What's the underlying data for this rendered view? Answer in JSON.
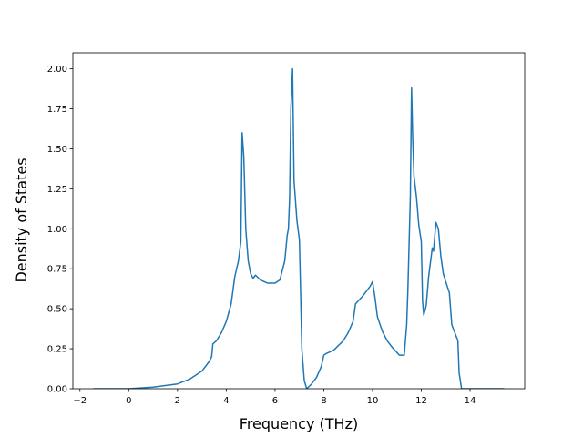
{
  "chart_data": {
    "type": "line",
    "x_label": "Frequency (THz)",
    "y_label": "Density of States",
    "series": [
      {
        "name": null,
        "color": "#1f77b4",
        "x": [
          -1.45,
          0,
          1,
          2,
          2.5,
          3,
          3.3,
          3.4,
          3.45,
          3.6,
          3.8,
          4.0,
          4.2,
          4.35,
          4.5,
          4.6,
          4.65,
          4.72,
          4.8,
          4.9,
          5.0,
          5.1,
          5.2,
          5.4,
          5.7,
          6.0,
          6.2,
          6.4,
          6.5,
          6.55,
          6.6,
          6.65,
          6.72,
          6.78,
          6.9,
          7.0,
          7.05,
          7.1,
          7.2,
          7.3,
          7.5,
          7.7,
          7.9,
          8.0,
          8.1,
          8.4,
          8.8,
          9.0,
          9.2,
          9.3,
          9.6,
          9.9,
          10.0,
          10.1,
          10.2,
          10.4,
          10.6,
          10.8,
          11.1,
          11.3,
          11.4,
          11.45,
          11.55,
          11.6,
          11.65,
          11.7,
          11.8,
          11.9,
          12.0,
          12.05,
          12.1,
          12.2,
          12.3,
          12.45,
          12.5,
          12.6,
          12.7,
          12.8,
          12.9,
          13.0,
          13.15,
          13.25,
          13.5,
          13.55,
          13.65,
          15.4
        ],
        "values": [
          0,
          0,
          0.01,
          0.03,
          0.06,
          0.11,
          0.17,
          0.2,
          0.28,
          0.3,
          0.35,
          0.42,
          0.53,
          0.7,
          0.8,
          0.92,
          1.6,
          1.45,
          1.0,
          0.8,
          0.72,
          0.69,
          0.71,
          0.68,
          0.66,
          0.66,
          0.68,
          0.8,
          0.96,
          1.0,
          1.2,
          1.75,
          2.0,
          1.3,
          1.05,
          0.93,
          0.6,
          0.25,
          0.05,
          0.0,
          0.03,
          0.07,
          0.14,
          0.21,
          0.22,
          0.24,
          0.3,
          0.35,
          0.42,
          0.53,
          0.58,
          0.64,
          0.67,
          0.57,
          0.45,
          0.36,
          0.3,
          0.26,
          0.21,
          0.21,
          0.4,
          0.62,
          1.2,
          1.88,
          1.55,
          1.33,
          1.2,
          1.02,
          0.92,
          0.55,
          0.46,
          0.52,
          0.7,
          0.88,
          0.86,
          1.04,
          1.0,
          0.83,
          0.72,
          0.67,
          0.6,
          0.4,
          0.3,
          0.1,
          0,
          0
        ]
      }
    ],
    "xlim": [
      -2.29,
      16.24
    ],
    "xticks": [
      {
        "value": -2,
        "label": "−2"
      },
      0,
      2,
      4,
      6,
      8,
      10,
      12,
      14
    ],
    "ylim": [
      0,
      2.1
    ],
    "yticks": [
      {
        "value": 0,
        "label": "0.00"
      },
      {
        "value": 0.25,
        "label": "0.25"
      },
      {
        "value": 0.5,
        "label": "0.50"
      },
      {
        "value": 0.75,
        "label": "0.75"
      },
      {
        "value": 1.0,
        "label": "1.00"
      },
      {
        "value": 1.25,
        "label": "1.25"
      },
      {
        "value": 1.5,
        "label": "1.50"
      },
      {
        "value": 1.75,
        "label": "1.75"
      },
      {
        "value": 2.0,
        "label": "2.00"
      }
    ],
    "grid": false
  }
}
